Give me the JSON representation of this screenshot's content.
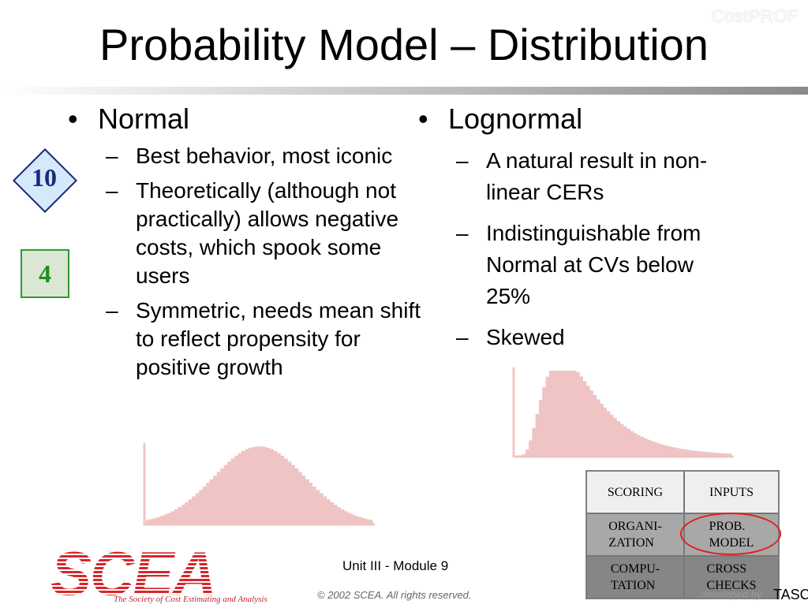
{
  "watermark": "CostPROF",
  "title": "Probability Model – Distribution",
  "left_column": {
    "heading": "Normal",
    "points": [
      "Best behavior, most iconic",
      "Theoretically (although not practically) allows negative costs, which spook some users",
      "Symmetric, needs mean shift to reflect propensity for positive growth"
    ]
  },
  "right_column": {
    "heading": "Lognormal",
    "points": [
      "A natural result in non-linear CERs",
      "Indistinguishable from Normal at CVs below 25%",
      "Skewed"
    ]
  },
  "badges": {
    "diamond": "10",
    "square": "4"
  },
  "nav_grid": {
    "cells": [
      "SCORING",
      "INPUTS",
      "ORGANI-\nZATION",
      "PROB.\nMODEL",
      "COMPU-\nTATION",
      "CROSS\nCHECKS"
    ],
    "highlighted": "PROB. MODEL",
    "highlight_color": "#e02020"
  },
  "footer": {
    "unit": "Unit III - Module 9",
    "copyright": "© 2002 SCEA.  All rights reserved.",
    "developed_by": "developed by",
    "developer": "TASC"
  },
  "logo": {
    "text": "SCEA",
    "tagline": "The Society of Cost Estimating and Analysis"
  },
  "chart_data": [
    {
      "type": "bar",
      "description_type": "histogram",
      "shape": "normal",
      "color": "#f0c4c4"
    },
    {
      "type": "bar",
      "description_type": "histogram",
      "shape": "lognormal",
      "color": "#f0c4c4"
    }
  ]
}
